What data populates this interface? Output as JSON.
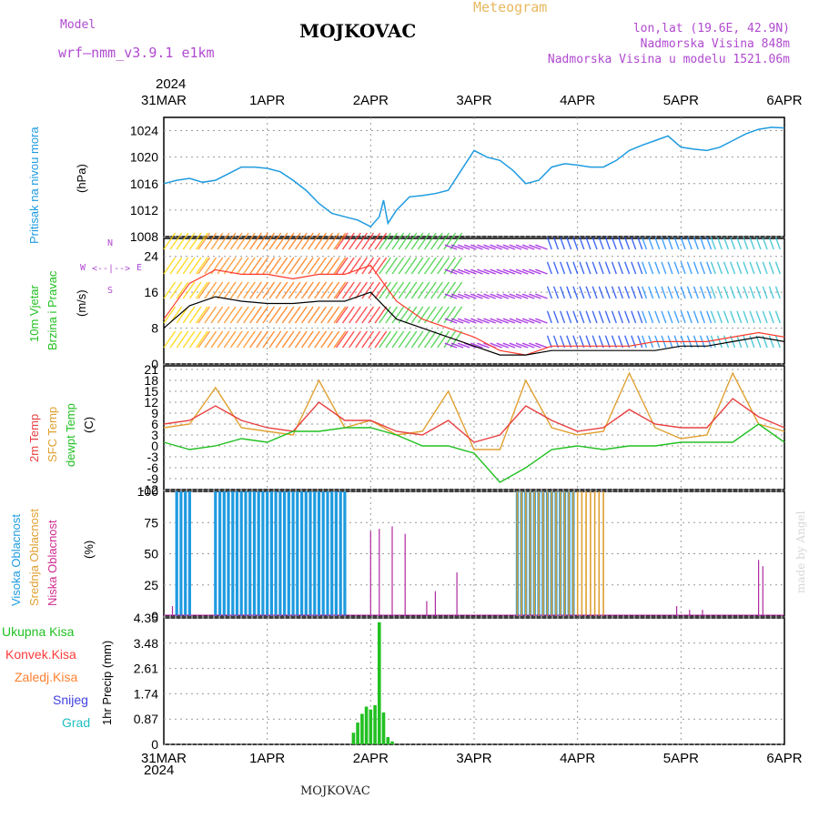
{
  "header": {
    "model_label": "Model",
    "model_name": "wrf—nmm_v3.9.1  e1km",
    "title": "MOJKOVAC",
    "meteogram": "Meteogram",
    "lonlat": "lon,lat (19.6E, 42.9N)",
    "elevation": "Nadmorska Visina 848m",
    "model_elevation": "Nadmorska Visina u modelu 1521.06m"
  },
  "x_axis": {
    "year": "2024",
    "ticks": [
      "31MAR",
      "1APR",
      "2APR",
      "3APR",
      "4APR",
      "5APR",
      "6APR"
    ]
  },
  "footer_station": "MOJKOVAC",
  "watermark": "made by Angel",
  "colors": {
    "pressure": "#1e9be0",
    "wind_speed": "#000000",
    "gust": "#ff3a2a",
    "temp2m": "#e84040",
    "sfc_temp": "#e0a030",
    "dewpt": "#22c022",
    "high_cloud": "#1e9be0",
    "mid_cloud": "#e0a030",
    "low_cloud": "#b02aa0",
    "total_precip": "#22c022"
  },
  "panels": {
    "pressure": {
      "label": "Pritisak na nivou mora",
      "unit": "(hPa)"
    },
    "wind": {
      "label1": "10m Vjetar",
      "label2": "Brzina i Pravac",
      "unit": "(m/s)",
      "dir_n": "N",
      "dir_e": "E",
      "dir_s": "S",
      "dir_w": "W"
    },
    "temp": {
      "label1": "2m Temp",
      "label2": "SFC Temp",
      "label3": "dewpt Temp",
      "unit": "(C)"
    },
    "cloud": {
      "label1": "Visoka Oblacnost",
      "label2": "Srednja Oblacnost",
      "label3": "Niska Oblacnost",
      "unit": "(%)"
    },
    "precip": {
      "unit": "1hr Precip (mm)",
      "legend": [
        "Ukupna Kisa",
        "Konvek.Kisa",
        "Zaledj.Kisa",
        "Snijeg",
        "Grad"
      ],
      "legend_colors": [
        "#22c022",
        "#ff3a3a",
        "#ff8030",
        "#4040e0",
        "#20c0c0"
      ]
    }
  },
  "chart_data": [
    {
      "type": "line",
      "name": "pressure",
      "x_unit": "hours from 31MAR 00UTC",
      "ylim": [
        1008,
        1026
      ],
      "yticks": [
        1008,
        1012,
        1016,
        1020,
        1024
      ],
      "grid": true,
      "series": [
        {
          "x": [
            0,
            3,
            6,
            9,
            12,
            15,
            18,
            21,
            24,
            27,
            30,
            33,
            36,
            39,
            42,
            45,
            48,
            50,
            51,
            52,
            53,
            54,
            57,
            60,
            63,
            66,
            69,
            72,
            75,
            78,
            81,
            84,
            87,
            90,
            93,
            96,
            99,
            102,
            105,
            108,
            111,
            114,
            117,
            120,
            123,
            126,
            129,
            132,
            135,
            138,
            141,
            144
          ],
          "values": [
            1016,
            1016.5,
            1016.8,
            1016.2,
            1016.5,
            1017.5,
            1018.5,
            1018.5,
            1018.3,
            1017.8,
            1016.5,
            1015,
            1013,
            1011.5,
            1011,
            1010.5,
            1009.5,
            1011,
            1013.5,
            1010,
            1011,
            1012,
            1014,
            1014.2,
            1014.5,
            1015,
            1018,
            1021,
            1020,
            1019.5,
            1018,
            1016,
            1016.5,
            1018.5,
            1019,
            1018.8,
            1018.5,
            1018.5,
            1019.5,
            1021,
            1021.8,
            1022.5,
            1023.2,
            1021.5,
            1021.2,
            1021,
            1021.5,
            1022.5,
            1023.5,
            1024.2,
            1024.5,
            1024.4
          ]
        }
      ]
    },
    {
      "type": "line",
      "name": "wind",
      "ylim": [
        0,
        28
      ],
      "yticks": [
        0,
        8,
        16,
        24
      ],
      "grid": true,
      "series": [
        {
          "name": "speed",
          "x": [
            0,
            6,
            12,
            18,
            24,
            30,
            36,
            42,
            48,
            51,
            54,
            60,
            66,
            72,
            78,
            84,
            90,
            96,
            102,
            108,
            114,
            120,
            126,
            132,
            138,
            144
          ],
          "values": [
            8,
            13,
            15,
            14,
            13.5,
            13.5,
            14,
            14,
            16,
            13,
            10,
            8,
            6,
            4,
            2,
            2,
            3,
            3,
            3,
            3,
            3,
            4,
            4,
            5,
            6,
            5
          ]
        },
        {
          "name": "gust",
          "x": [
            0,
            6,
            12,
            18,
            24,
            30,
            36,
            42,
            48,
            51,
            54,
            60,
            66,
            72,
            78,
            84,
            90,
            96,
            102,
            108,
            114,
            120,
            126,
            132,
            138,
            144
          ],
          "values": [
            10,
            18,
            21,
            20,
            20,
            19,
            20,
            20,
            22,
            18,
            14,
            10,
            8,
            6,
            3,
            2,
            4,
            4,
            4,
            4,
            5,
            5,
            5,
            6,
            7,
            6
          ]
        }
      ]
    },
    {
      "type": "line",
      "name": "temperature",
      "ylim": [
        -12,
        22
      ],
      "yticks": [
        -12,
        -9,
        -6,
        -3,
        0,
        3,
        6,
        9,
        12,
        15,
        18,
        21
      ],
      "grid": true,
      "series": [
        {
          "name": "2m",
          "x": [
            0,
            6,
            12,
            18,
            24,
            30,
            36,
            42,
            48,
            54,
            60,
            66,
            72,
            78,
            84,
            90,
            96,
            102,
            108,
            114,
            120,
            126,
            132,
            138,
            144
          ],
          "values": [
            6,
            7,
            11,
            7,
            5,
            4,
            12,
            7,
            7,
            4,
            3,
            7,
            1,
            3,
            11,
            7,
            4,
            5,
            10,
            6,
            5,
            5,
            13,
            8,
            5
          ]
        },
        {
          "name": "sfc",
          "x": [
            0,
            6,
            12,
            18,
            24,
            30,
            36,
            42,
            48,
            54,
            60,
            66,
            72,
            78,
            84,
            90,
            96,
            102,
            108,
            114,
            120,
            126,
            132,
            138,
            144
          ],
          "values": [
            5,
            6,
            16,
            5,
            4,
            3,
            18,
            5,
            7,
            3,
            4,
            15,
            -1,
            -1,
            18,
            5,
            3,
            4,
            20,
            5,
            2,
            3,
            20,
            6,
            4
          ]
        },
        {
          "name": "dewpt",
          "x": [
            0,
            6,
            12,
            18,
            24,
            30,
            36,
            42,
            48,
            54,
            60,
            66,
            72,
            78,
            84,
            90,
            96,
            102,
            108,
            114,
            120,
            126,
            132,
            138,
            144
          ],
          "values": [
            1,
            -1,
            0,
            2,
            1,
            4,
            4,
            5,
            5,
            3,
            0,
            0,
            -2,
            -10,
            -6,
            -1,
            0,
            -1,
            0,
            0,
            1,
            1,
            1,
            6,
            1
          ]
        }
      ]
    },
    {
      "type": "bar",
      "name": "cloud_cover",
      "ylim": [
        0,
        100
      ],
      "yticks": [
        0,
        25,
        50,
        75,
        100
      ],
      "grid": true,
      "series": [
        {
          "name": "high",
          "x_ranges": [
            [
              3,
              6
            ],
            [
              12,
              42
            ],
            [
              82,
              95
            ]
          ],
          "value": 100
        },
        {
          "name": "mid",
          "x_ranges": [
            [
              82,
              102
            ]
          ],
          "value": 100
        },
        {
          "name": "low",
          "x": [
            2,
            48,
            50,
            53,
            56,
            61,
            63,
            68,
            119,
            122,
            125,
            138,
            139
          ],
          "values": [
            8,
            68,
            70,
            72,
            66,
            12,
            20,
            35,
            8,
            5,
            5,
            45,
            40
          ]
        }
      ]
    },
    {
      "type": "bar",
      "name": "precipitation",
      "ylim": [
        0,
        4.35
      ],
      "yticks": [
        0,
        0.87,
        1.74,
        2.61,
        3.48,
        4.35
      ],
      "grid": true,
      "series": [
        {
          "name": "total",
          "x": [
            44,
            45,
            46,
            47,
            48,
            49,
            50,
            51,
            52,
            53
          ],
          "values": [
            0.4,
            0.75,
            1.05,
            1.3,
            1.2,
            1.35,
            4.2,
            1.1,
            0.25,
            0.1
          ]
        }
      ]
    }
  ]
}
